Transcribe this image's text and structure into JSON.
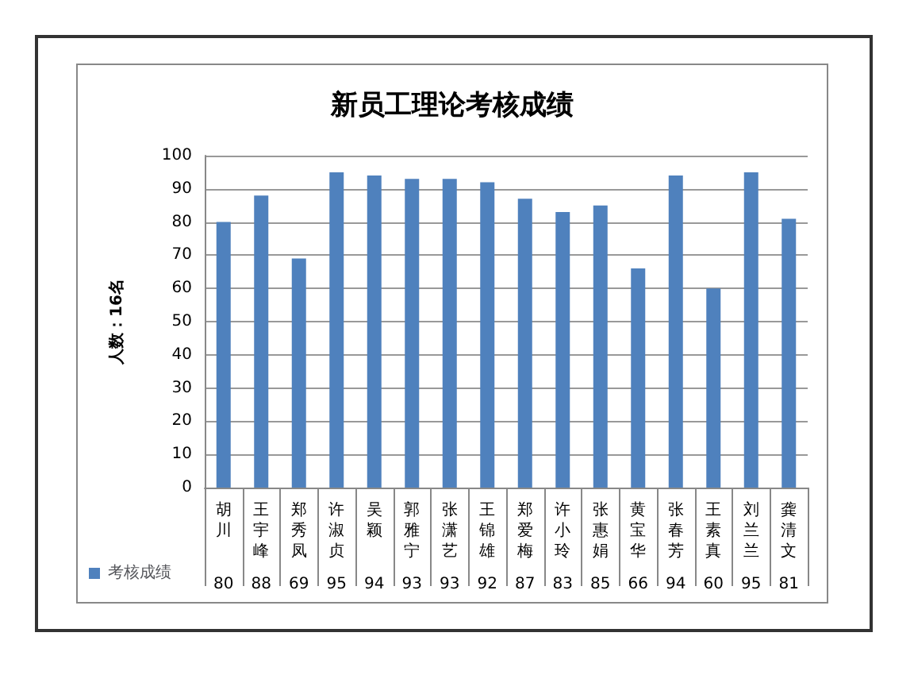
{
  "chart_data": {
    "type": "bar",
    "title": "新员工理论考核成绩",
    "ylabel": "人数：16名",
    "categories": [
      "胡川",
      "王宇峰",
      "郑秀凤",
      "许淑贞",
      "吴颖",
      "郭雅宁",
      "张潇艺",
      "王锦雄",
      "郑爱梅",
      "许小玲",
      "张惠娟",
      "黄宝华",
      "张春芳",
      "王素真",
      "刘兰兰",
      "龚清文"
    ],
    "series": [
      {
        "name": "考核成绩",
        "color": "#4f81bd",
        "values": [
          80,
          88,
          69,
          95,
          94,
          93,
          93,
          92,
          87,
          83,
          85,
          66,
          94,
          60,
          95,
          81
        ]
      }
    ],
    "ylim": [
      0,
      100
    ],
    "yticks": [
      0,
      10,
      20,
      30,
      40,
      50,
      60,
      70,
      80,
      90,
      100
    ],
    "grid": "y",
    "legend": "bottom left",
    "data_labels": true
  }
}
